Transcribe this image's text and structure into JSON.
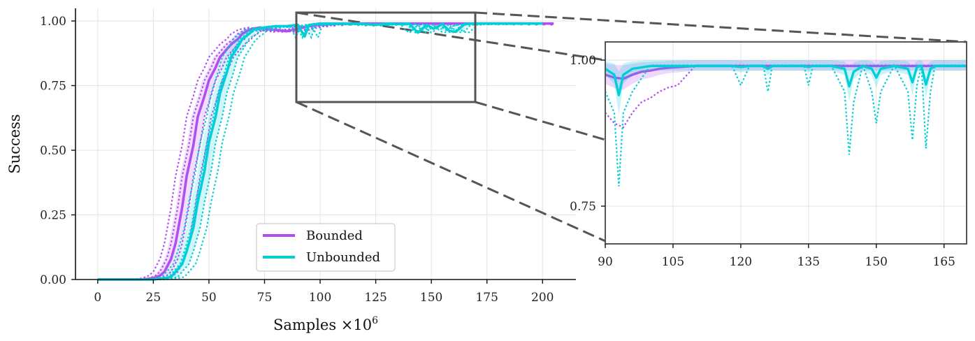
{
  "chart_data": [
    {
      "type": "line",
      "panel": "main",
      "xlabel": "Samples ×10⁶",
      "ylabel": "Success",
      "xlim": [
        -10,
        215
      ],
      "ylim": [
        0,
        1.05
      ],
      "xticks": [
        0,
        25,
        50,
        75,
        100,
        125,
        150,
        175,
        200
      ],
      "xtick_labels": [
        "0",
        "25",
        "50",
        "75",
        "100",
        "125",
        "150",
        "175",
        "200"
      ],
      "yticks": [
        0.0,
        0.25,
        0.5,
        0.75,
        1.0
      ],
      "ytick_labels": [
        "0.00",
        "0.25",
        "0.50",
        "0.75",
        "1.00"
      ],
      "grid": true,
      "legend_position": "lower-center",
      "zoom_box": {
        "x": [
          90,
          170
        ],
        "y": [
          0.69,
          1.035
        ]
      },
      "series": [
        {
          "name": "Bounded",
          "color": "#b04ef0",
          "x": [
            0,
            20,
            25,
            28,
            30,
            33,
            35,
            38,
            40,
            43,
            45,
            48,
            50,
            53,
            55,
            58,
            60,
            63,
            65,
            68,
            70,
            73,
            75,
            80,
            85,
            90,
            95,
            100,
            110,
            120,
            130,
            140,
            150,
            160,
            170,
            180,
            190,
            200,
            205
          ],
          "y": [
            0.0,
            0.0,
            0.005,
            0.015,
            0.03,
            0.08,
            0.14,
            0.28,
            0.4,
            0.52,
            0.63,
            0.71,
            0.77,
            0.82,
            0.86,
            0.89,
            0.91,
            0.93,
            0.95,
            0.965,
            0.97,
            0.975,
            0.97,
            0.965,
            0.96,
            0.97,
            0.98,
            0.985,
            0.99,
            0.99,
            0.99,
            0.99,
            0.99,
            0.99,
            0.99,
            0.99,
            0.99,
            0.99,
            0.99
          ]
        },
        {
          "name": "Unbounded",
          "color": "#00cfd8",
          "x": [
            0,
            25,
            30,
            33,
            35,
            38,
            40,
            43,
            45,
            48,
            50,
            53,
            55,
            58,
            60,
            63,
            65,
            68,
            70,
            75,
            80,
            85,
            90,
            93,
            95,
            100,
            110,
            120,
            125,
            130,
            136,
            140,
            144,
            148,
            151,
            155,
            158,
            161,
            165,
            170,
            180,
            190,
            200
          ],
          "y": [
            0.0,
            0.0,
            0.005,
            0.01,
            0.03,
            0.06,
            0.11,
            0.2,
            0.3,
            0.42,
            0.53,
            0.63,
            0.72,
            0.8,
            0.86,
            0.9,
            0.93,
            0.95,
            0.965,
            0.975,
            0.98,
            0.98,
            0.985,
            0.94,
            0.985,
            0.99,
            0.99,
            0.988,
            0.985,
            0.99,
            0.988,
            0.99,
            0.955,
            0.985,
            0.97,
            0.988,
            0.962,
            0.958,
            0.988,
            0.99,
            0.99,
            0.99,
            0.99
          ]
        }
      ]
    },
    {
      "type": "line",
      "panel": "zoom-inset",
      "xlim": [
        90,
        170
      ],
      "ylim": [
        0.69,
        1.035
      ],
      "xticks": [
        90,
        105,
        120,
        135,
        150,
        165
      ],
      "xtick_labels": [
        "90",
        "105",
        "120",
        "135",
        "150",
        "165"
      ],
      "yticks": [
        0.75,
        1.0
      ],
      "ytick_labels": [
        "0.75",
        "1.00"
      ],
      "grid": true,
      "series": [
        {
          "name": "Bounded",
          "color": "#b04ef0",
          "x": [
            90,
            92,
            94,
            96,
            98,
            100,
            102,
            104,
            106,
            110,
            115,
            120,
            125,
            130,
            135,
            140,
            145,
            150,
            155,
            160,
            165,
            170
          ],
          "y": [
            0.975,
            0.97,
            0.968,
            0.975,
            0.98,
            0.982,
            0.985,
            0.987,
            0.988,
            0.99,
            0.99,
            0.99,
            0.99,
            0.99,
            0.99,
            0.99,
            0.99,
            0.99,
            0.99,
            0.99,
            0.99,
            0.99
          ]
        },
        {
          "name": "Unbounded",
          "color": "#00cfd8",
          "x": [
            90,
            92,
            93,
            94,
            96,
            100,
            105,
            110,
            118,
            120,
            122,
            125,
            126,
            127,
            130,
            134,
            135,
            136,
            140,
            143,
            144,
            145,
            147,
            149,
            150,
            151,
            154,
            157,
            158,
            159,
            160,
            161,
            162,
            163,
            166,
            170
          ],
          "y": [
            0.985,
            0.975,
            0.94,
            0.975,
            0.985,
            0.99,
            0.99,
            0.99,
            0.99,
            0.988,
            0.99,
            0.99,
            0.985,
            0.99,
            0.99,
            0.99,
            0.988,
            0.99,
            0.99,
            0.985,
            0.955,
            0.98,
            0.99,
            0.985,
            0.97,
            0.985,
            0.99,
            0.985,
            0.962,
            0.988,
            0.99,
            0.958,
            0.985,
            0.99,
            0.99,
            0.99
          ]
        }
      ]
    }
  ]
}
